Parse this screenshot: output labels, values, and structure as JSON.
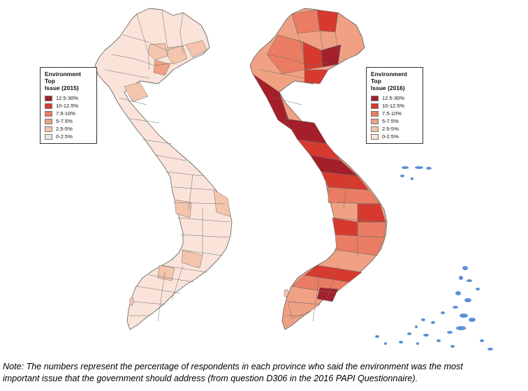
{
  "maps": [
    {
      "legend_title_line1": "Environment Top",
      "legend_title_line2": "Issue (2015)",
      "classes": [
        "12.5-30%",
        "10-12.5%",
        "7.5-10%",
        "5-7.5%",
        "2.5-5%",
        "0-2.5%"
      ]
    },
    {
      "legend_title_line1": "Environment Top",
      "legend_title_line2": "Issue (2016)",
      "classes": [
        "12.5-30%",
        "10-12.5%",
        "7.5-10%",
        "5-7.5%",
        "2.5-5%",
        "0-2.5%"
      ]
    }
  ],
  "class_colors": [
    "#a3202a",
    "#d63a2f",
    "#ea7c63",
    "#f0a184",
    "#f5c4ad",
    "#fae4d9"
  ],
  "island_color": "#5b8fd6",
  "note_line1": "Note: The numbers represent the percentage of respondents in each province who said the environment was the most",
  "note_line2": "important issue that the government should address (from question D306 in the 2016 PAPI Questionnaire)."
}
